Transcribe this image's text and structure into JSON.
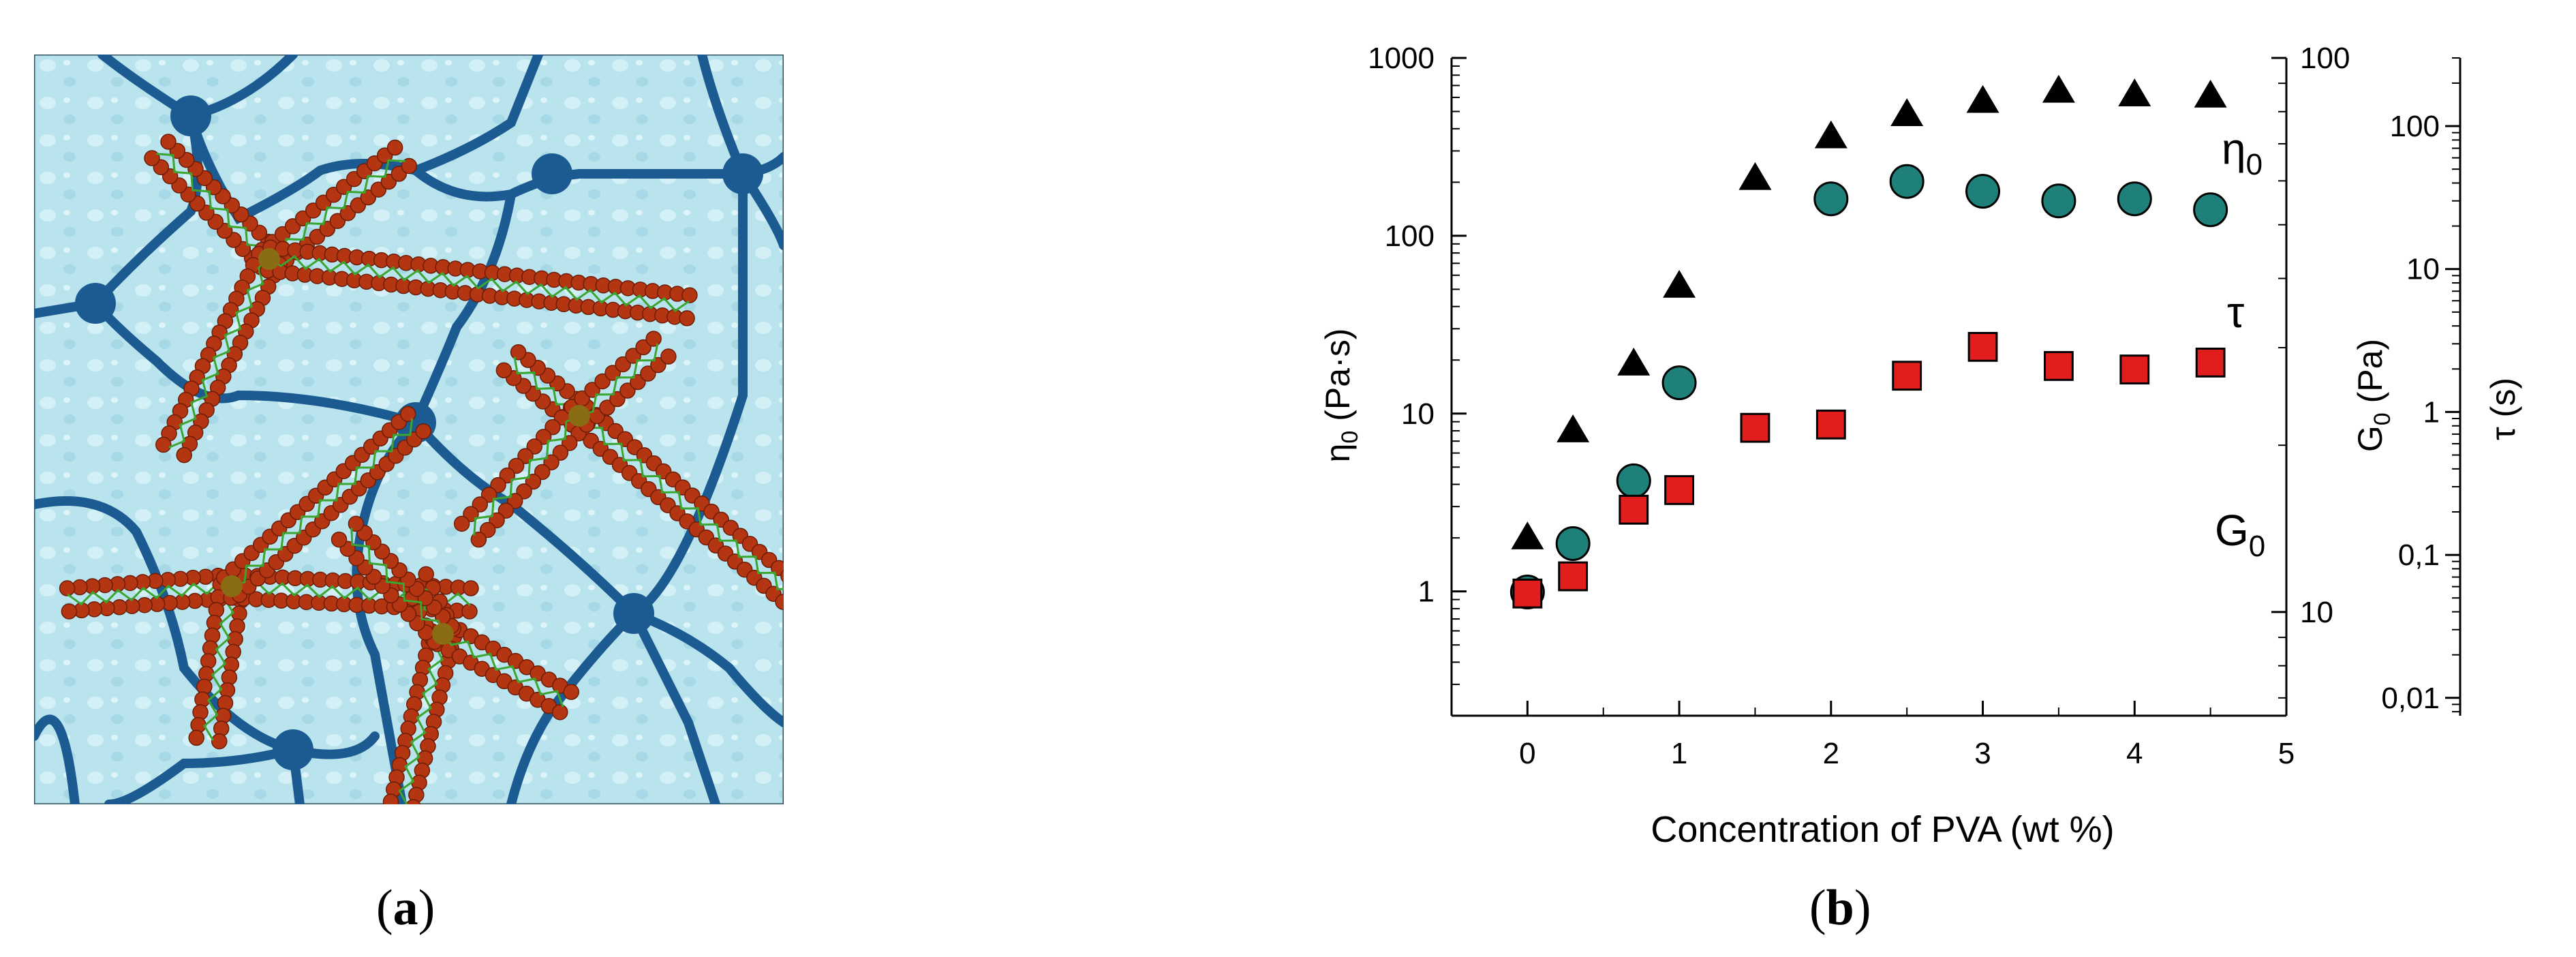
{
  "captions": {
    "a_open": "(",
    "a_letter": "a",
    "a_close": ")",
    "b_open": "(",
    "b_letter": "b",
    "b_close": ")"
  },
  "colors": {
    "water": "#b9e4ee",
    "network": "#1c5b92",
    "micelle_bead": "#b33512",
    "micelle_core": "#3aa52f",
    "eta_marker": "#000000",
    "tau_marker": "#1e8078",
    "g0_marker": "#e21d1d"
  },
  "chart_data": {
    "type": "scatter",
    "x_axis": {
      "label": "Concentration of PVA (wt %)",
      "range": [
        -0.5,
        5
      ],
      "ticks": [
        "0",
        "1",
        "2",
        "3",
        "4",
        "5"
      ]
    },
    "y_axes": [
      {
        "id": "eta",
        "label_symbol": "η",
        "label_sub": "0",
        "label_unit": " (Pa·s)",
        "scale": "log",
        "range": [
          0.2,
          1000
        ],
        "ticks": [
          "1",
          "10",
          "100",
          "1000"
        ],
        "side": "left"
      },
      {
        "id": "g0",
        "label_symbol": "G",
        "label_sub": "0",
        "label_unit": " (Pa)",
        "scale": "log",
        "range": [
          6.5,
          100
        ],
        "ticks": [
          "10",
          "100"
        ],
        "side": "right"
      },
      {
        "id": "tau",
        "label_symbol": "τ",
        "label_unit": " (s)",
        "scale": "log",
        "range": [
          0.0075,
          300
        ],
        "ticks": [
          "0,01",
          "0,1",
          "1",
          "10",
          "100"
        ],
        "side": "right"
      }
    ],
    "series": [
      {
        "name": "η",
        "name_sub": "0",
        "axis": "eta",
        "marker": "triangle",
        "x": [
          0,
          0.3,
          0.7,
          1,
          1.5,
          2,
          2.5,
          3,
          3.5,
          4,
          4.5
        ],
        "y": [
          2,
          8,
          19,
          52,
          210,
          360,
          480,
          570,
          650,
          620,
          610
        ]
      },
      {
        "name": "τ",
        "axis": "tau",
        "marker": "circle",
        "x": [
          0,
          0.3,
          0.7,
          1,
          2,
          2.5,
          3,
          3.5,
          4,
          4.5
        ],
        "y": [
          0.055,
          0.12,
          0.33,
          1.6,
          31,
          41,
          35,
          30,
          31,
          26
        ]
      },
      {
        "name": "G",
        "name_sub": "0",
        "axis": "g0",
        "marker": "square",
        "x": [
          0,
          0.3,
          0.7,
          1,
          1.5,
          2,
          2.5,
          3,
          3.5,
          4,
          4.5
        ],
        "y": [
          10.8,
          11.6,
          15.3,
          16.6,
          21.5,
          21.8,
          26.7,
          30.1,
          27.8,
          27.4,
          28.2
        ]
      }
    ],
    "grid": false,
    "legend": "inline labels at right"
  }
}
